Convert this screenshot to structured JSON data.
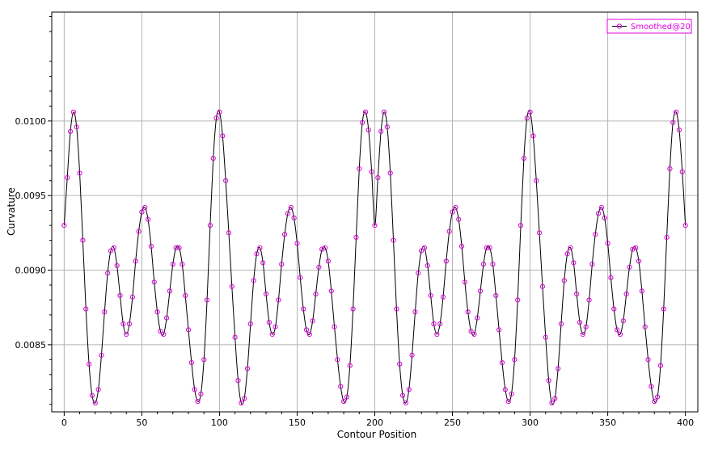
{
  "chart_data": {
    "type": "line",
    "title": "",
    "xlabel": "Contour Position",
    "ylabel": "Curvature",
    "xlim": [
      -8,
      408
    ],
    "ylim": [
      0.00805,
      0.01073
    ],
    "x_ticks": [
      0,
      50,
      100,
      150,
      200,
      250,
      300,
      350,
      400
    ],
    "x_tick_labels": [
      "0",
      "50",
      "100",
      "150",
      "200",
      "250",
      "300",
      "350",
      "400"
    ],
    "y_ticks": [
      0.0085,
      0.009,
      0.0095,
      0.01
    ],
    "y_tick_labels": [
      "0.0085",
      "0.0090",
      "0.0095",
      "0.0100"
    ],
    "grid": true,
    "legend": {
      "position": "top-right",
      "entries": [
        "Smoothed@20"
      ]
    },
    "colors": {
      "line": "#000000",
      "marker": "#e000e0",
      "grid": "#b4b4b4",
      "axis": "#000000"
    },
    "series": [
      {
        "name": "Smoothed@20",
        "x": [
          0,
          2,
          4,
          6,
          8,
          10,
          12,
          14,
          16,
          18,
          20,
          22,
          24,
          26,
          28,
          30,
          32,
          34,
          36,
          38,
          40,
          42,
          44,
          46,
          48,
          50,
          52,
          54,
          56,
          58,
          60,
          62,
          64,
          66,
          68,
          70,
          72,
          74,
          76,
          78,
          80,
          82,
          84,
          86,
          88,
          90,
          92,
          94,
          96,
          98,
          100,
          102,
          104,
          106,
          108,
          110,
          112,
          114,
          116,
          118,
          120,
          122,
          124,
          126,
          128,
          130,
          132,
          134,
          136,
          138,
          140,
          142,
          144,
          146,
          148,
          150,
          152,
          154,
          156,
          158,
          160,
          162,
          164,
          166,
          168,
          170,
          172,
          174,
          176,
          178,
          180,
          182,
          184,
          186,
          188,
          190,
          192,
          194,
          196,
          198,
          200,
          202,
          204,
          206,
          208,
          210,
          212,
          214,
          216,
          218,
          220,
          222,
          224,
          226,
          228,
          230,
          232,
          234,
          236,
          238,
          240,
          242,
          244,
          246,
          248,
          250,
          252,
          254,
          256,
          258,
          260,
          262,
          264,
          266,
          268,
          270,
          272,
          274,
          276,
          278,
          280,
          282,
          284,
          286,
          288,
          290,
          292,
          294,
          296,
          298,
          300,
          302,
          304,
          306,
          308,
          310,
          312,
          314,
          316,
          318,
          320,
          322,
          324,
          326,
          328,
          330,
          332,
          334,
          336,
          338,
          340,
          342,
          344,
          346,
          348,
          350,
          352,
          354,
          356,
          358,
          360,
          362,
          364,
          366,
          368,
          370,
          372,
          374,
          376,
          378,
          380,
          382,
          384,
          386,
          388,
          390,
          392,
          394,
          396,
          398,
          400
        ],
        "y": [
          0.0093,
          0.00962,
          0.00993,
          0.01006,
          0.00996,
          0.00965,
          0.0092,
          0.00874,
          0.00837,
          0.00816,
          0.00811,
          0.0082,
          0.00843,
          0.00872,
          0.00898,
          0.00913,
          0.00915,
          0.00903,
          0.00883,
          0.00864,
          0.00857,
          0.00864,
          0.00882,
          0.00906,
          0.00926,
          0.00939,
          0.00942,
          0.00934,
          0.00916,
          0.00892,
          0.00872,
          0.00859,
          0.00857,
          0.00868,
          0.00886,
          0.00904,
          0.00915,
          0.00915,
          0.00904,
          0.00883,
          0.0086,
          0.00838,
          0.0082,
          0.00812,
          0.00817,
          0.0084,
          0.0088,
          0.0093,
          0.00975,
          0.01002,
          0.01006,
          0.0099,
          0.0096,
          0.00925,
          0.00889,
          0.00855,
          0.00826,
          0.00811,
          0.00814,
          0.00834,
          0.00864,
          0.00893,
          0.00911,
          0.00915,
          0.00905,
          0.00884,
          0.00865,
          0.00857,
          0.00862,
          0.0088,
          0.00904,
          0.00924,
          0.00938,
          0.00942,
          0.00935,
          0.00918,
          0.00895,
          0.00874,
          0.0086,
          0.00857,
          0.00866,
          0.00884,
          0.00902,
          0.00914,
          0.00915,
          0.00906,
          0.00886,
          0.00862,
          0.0084,
          0.00822,
          0.00812,
          0.00815,
          0.00836,
          0.00874,
          0.00922,
          0.00968,
          0.00999,
          0.01006,
          0.00994,
          0.00966,
          0.0093,
          0.00962,
          0.00993,
          0.01006,
          0.00996,
          0.00965,
          0.0092,
          0.00874,
          0.00837,
          0.00816,
          0.00811,
          0.0082,
          0.00843,
          0.00872,
          0.00898,
          0.00913,
          0.00915,
          0.00903,
          0.00883,
          0.00864,
          0.00857,
          0.00864,
          0.00882,
          0.00906,
          0.00926,
          0.00939,
          0.00942,
          0.00934,
          0.00916,
          0.00892,
          0.00872,
          0.00859,
          0.00857,
          0.00868,
          0.00886,
          0.00904,
          0.00915,
          0.00915,
          0.00904,
          0.00883,
          0.0086,
          0.00838,
          0.0082,
          0.00812,
          0.00817,
          0.0084,
          0.0088,
          0.0093,
          0.00975,
          0.01002,
          0.01006,
          0.0099,
          0.0096,
          0.00925,
          0.00889,
          0.00855,
          0.00826,
          0.00811,
          0.00814,
          0.00834,
          0.00864,
          0.00893,
          0.00911,
          0.00915,
          0.00905,
          0.00884,
          0.00865,
          0.00857,
          0.00862,
          0.0088,
          0.00904,
          0.00924,
          0.00938,
          0.00942,
          0.00935,
          0.00918,
          0.00895,
          0.00874,
          0.0086,
          0.00857,
          0.00866,
          0.00884,
          0.00902,
          0.00914,
          0.00915,
          0.00906,
          0.00886,
          0.00862,
          0.0084,
          0.00822,
          0.00812,
          0.00815,
          0.00836,
          0.00874,
          0.00922,
          0.00968,
          0.00999,
          0.01006,
          0.00994,
          0.00966,
          0.0093
        ]
      }
    ]
  }
}
